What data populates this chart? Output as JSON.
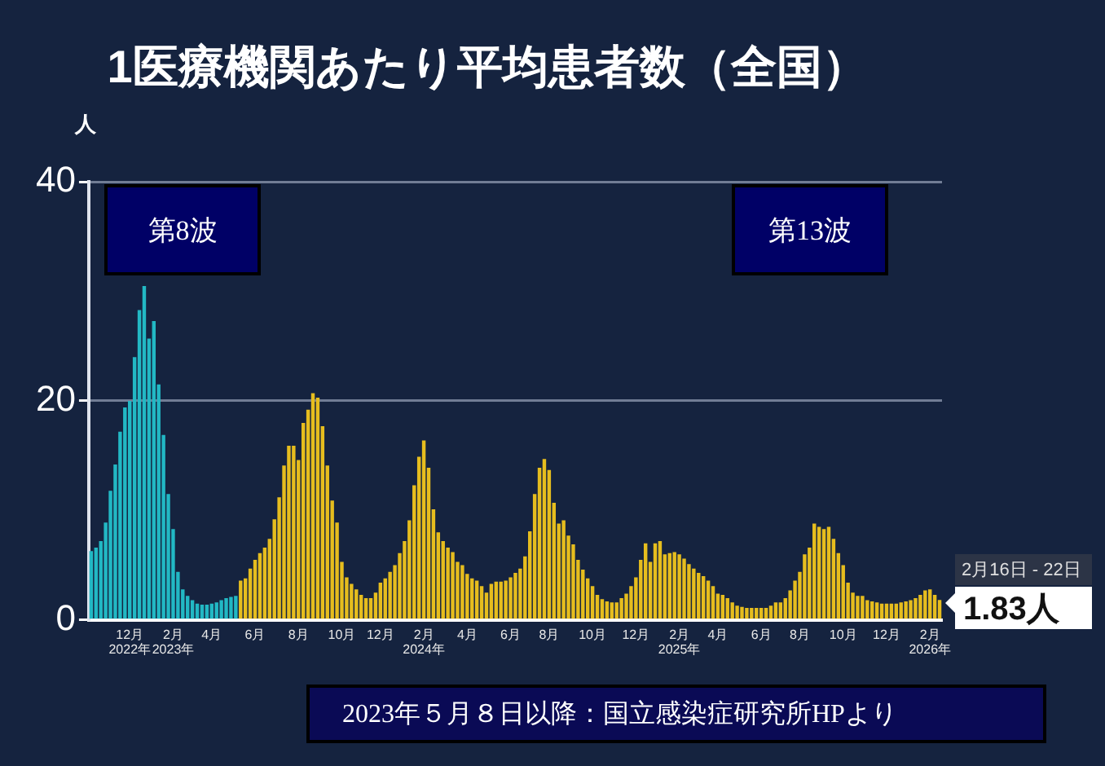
{
  "chart_data": {
    "type": "bar",
    "title": "1医療機関あたり平均患者数（全国）",
    "ylabel": "人",
    "categories": [
      null,
      null,
      null,
      null,
      null,
      null,
      null,
      null,
      "12月\n2022年",
      null,
      null,
      null,
      null,
      null,
      null,
      null,
      null,
      "2月\n2023年",
      null,
      null,
      null,
      null,
      null,
      null,
      null,
      "4月",
      null,
      null,
      null,
      null,
      null,
      null,
      null,
      null,
      "6月",
      null,
      null,
      null,
      null,
      null,
      null,
      null,
      null,
      "8月",
      null,
      null,
      null,
      null,
      null,
      null,
      null,
      null,
      "10月",
      null,
      null,
      null,
      null,
      null,
      null,
      null,
      "12月",
      null,
      null,
      null,
      null,
      null,
      null,
      null,
      null,
      "2月\n2024年",
      null,
      null,
      null,
      null,
      null,
      null,
      null,
      null,
      "4月",
      null,
      null,
      null,
      null,
      null,
      null,
      null,
      null,
      "6月",
      null,
      null,
      null,
      null,
      null,
      null,
      null,
      "8月",
      null,
      null,
      null,
      null,
      null,
      null,
      null,
      null,
      "10月",
      null,
      null,
      null,
      null,
      null,
      null,
      null,
      null,
      "12月",
      null,
      null,
      null,
      null,
      null,
      null,
      null,
      null,
      "2月\n2025年",
      null,
      null,
      null,
      null,
      null,
      null,
      null,
      "4月",
      null,
      null,
      null,
      null,
      null,
      null,
      null,
      null,
      "6月",
      null,
      null,
      null,
      null,
      null,
      null,
      null,
      "8月",
      null,
      null,
      null,
      null,
      null,
      null,
      null,
      null,
      "10月",
      null,
      null,
      null,
      null,
      null,
      null,
      null,
      null,
      "12月",
      null,
      null,
      null,
      null,
      null,
      null,
      null,
      null,
      "2月\n2026年",
      null,
      null
    ],
    "values": [
      6.3,
      6.6,
      7.2,
      8.9,
      11.8,
      14.2,
      17.2,
      19.4,
      20,
      24,
      28.3,
      30.5,
      25.7,
      27.3,
      21.5,
      16.9,
      11.5,
      8.3,
      4.4,
      2.8,
      2.2,
      1.8,
      1.5,
      1.4,
      1.4,
      1.5,
      1.6,
      1.8,
      2,
      2.1,
      2.2,
      3.6,
      3.8,
      4.7,
      5.5,
      6.1,
      6.6,
      7.4,
      9.2,
      11.2,
      14.1,
      15.9,
      15.9,
      14.6,
      18,
      19.2,
      20.7,
      20.3,
      17.7,
      14.1,
      10.9,
      8.9,
      5.3,
      3.9,
      3.3,
      2.8,
      2.3,
      2,
      2,
      2.5,
      3.4,
      3.8,
      4.4,
      5,
      6.1,
      7.2,
      9.1,
      12.3,
      14.9,
      16.4,
      13.9,
      10.1,
      8,
      7.2,
      6.6,
      6.2,
      5.3,
      5,
      4.2,
      3.8,
      3.6,
      3.1,
      2.5,
      3.3,
      3.5,
      3.5,
      3.6,
      3.9,
      4.3,
      4.7,
      5.8,
      8.1,
      11.5,
      13.9,
      14.7,
      13.7,
      10.7,
      8.8,
      9.1,
      7.7,
      6.9,
      5.5,
      4.6,
      3.8,
      3.1,
      2.3,
      1.9,
      1.7,
      1.6,
      1.6,
      2,
      2.4,
      3.1,
      3.9,
      5.5,
      7,
      5.3,
      7,
      7.2,
      6,
      6.1,
      6.2,
      6,
      5.6,
      5.1,
      4.7,
      4.3,
      4,
      3.6,
      3.1,
      2.4,
      2.3,
      2,
      1.6,
      1.3,
      1.2,
      1.1,
      1.1,
      1.1,
      1.1,
      1.1,
      1.3,
      1.6,
      1.6,
      2,
      2.7,
      3.6,
      4.4,
      6,
      6.6,
      8.8,
      8.5,
      8.3,
      8.5,
      7.4,
      6.1,
      5,
      3.4,
      2.5,
      2.2,
      2.2,
      1.8,
      1.7,
      1.6,
      1.5,
      1.5,
      1.5,
      1.5,
      1.6,
      1.7,
      1.8,
      2,
      2.3,
      2.7,
      2.8,
      2.3,
      1.83
    ],
    "colors": [
      "#22b8c4",
      "#22b8c4",
      "#22b8c4",
      "#22b8c4",
      "#22b8c4",
      "#22b8c4",
      "#22b8c4",
      "#22b8c4",
      "#22b8c4",
      "#22b8c4",
      "#22b8c4",
      "#22b8c4",
      "#22b8c4",
      "#22b8c4",
      "#22b8c4",
      "#22b8c4",
      "#22b8c4",
      "#22b8c4",
      "#22b8c4",
      "#22b8c4",
      "#22b8c4",
      "#22b8c4",
      "#22b8c4",
      "#22b8c4",
      "#22b8c4",
      "#22b8c4",
      "#22b8c4",
      "#22b8c4",
      "#22b8c4",
      "#22b8c4",
      "#22b8c4",
      "#e6bd1e",
      "#e6bd1e",
      "#e6bd1e",
      "#e6bd1e",
      "#e6bd1e",
      "#e6bd1e",
      "#e6bd1e",
      "#e6bd1e",
      "#e6bd1e",
      "#e6bd1e",
      "#e6bd1e",
      "#e6bd1e",
      "#e6bd1e",
      "#e6bd1e",
      "#e6bd1e",
      "#e6bd1e",
      "#e6bd1e",
      "#e6bd1e",
      "#e6bd1e",
      "#e6bd1e",
      "#e6bd1e",
      "#e6bd1e",
      "#e6bd1e",
      "#e6bd1e",
      "#e6bd1e",
      "#e6bd1e",
      "#e6bd1e",
      "#e6bd1e",
      "#e6bd1e",
      "#e6bd1e",
      "#e6bd1e",
      "#e6bd1e",
      "#e6bd1e",
      "#e6bd1e",
      "#e6bd1e",
      "#e6bd1e",
      "#e6bd1e",
      "#e6bd1e",
      "#e6bd1e",
      "#e6bd1e",
      "#e6bd1e",
      "#e6bd1e",
      "#e6bd1e",
      "#e6bd1e",
      "#e6bd1e",
      "#e6bd1e",
      "#e6bd1e",
      "#e6bd1e",
      "#e6bd1e",
      "#e6bd1e",
      "#e6bd1e",
      "#e6bd1e",
      "#e6bd1e",
      "#e6bd1e",
      "#e6bd1e",
      "#e6bd1e",
      "#e6bd1e",
      "#e6bd1e",
      "#e6bd1e",
      "#e6bd1e",
      "#e6bd1e",
      "#e6bd1e",
      "#e6bd1e",
      "#e6bd1e",
      "#e6bd1e",
      "#e6bd1e",
      "#e6bd1e",
      "#e6bd1e",
      "#e6bd1e",
      "#e6bd1e",
      "#e6bd1e",
      "#e6bd1e",
      "#e6bd1e",
      "#e6bd1e",
      "#e6bd1e",
      "#e6bd1e",
      "#e6bd1e",
      "#e6bd1e",
      "#e6bd1e",
      "#e6bd1e",
      "#e6bd1e",
      "#e6bd1e",
      "#e6bd1e",
      "#e6bd1e",
      "#e6bd1e",
      "#e6bd1e",
      "#e6bd1e",
      "#e6bd1e",
      "#e6bd1e",
      "#e6bd1e",
      "#e6bd1e",
      "#e6bd1e",
      "#e6bd1e",
      "#e6bd1e",
      "#e6bd1e",
      "#e6bd1e",
      "#e6bd1e",
      "#e6bd1e",
      "#e6bd1e",
      "#e6bd1e",
      "#e6bd1e",
      "#e6bd1e",
      "#e6bd1e",
      "#e6bd1e",
      "#e6bd1e",
      "#e6bd1e",
      "#e6bd1e",
      "#e6bd1e",
      "#e6bd1e",
      "#e6bd1e",
      "#e6bd1e",
      "#e6bd1e",
      "#e6bd1e",
      "#e6bd1e",
      "#e6bd1e",
      "#e6bd1e",
      "#e6bd1e",
      "#e6bd1e",
      "#e6bd1e",
      "#e6bd1e",
      "#e6bd1e",
      "#e6bd1e",
      "#e6bd1e",
      "#e6bd1e",
      "#e6bd1e",
      "#e6bd1e",
      "#e6bd1e",
      "#e6bd1e",
      "#e6bd1e",
      "#e6bd1e",
      "#e6bd1e",
      "#e6bd1e",
      "#e6bd1e",
      "#e6bd1e",
      "#e6bd1e",
      "#e6bd1e",
      "#e6bd1e",
      "#e6bd1e",
      "#e6bd1e",
      "#e6bd1e",
      "#e6bd1e",
      "#e6bd1e",
      "#e6bd1e",
      "#e6bd1e",
      "#e6bd1e",
      "#e6bd1e"
    ],
    "ylim": [
      0,
      40
    ],
    "yticks": [
      0,
      20,
      40
    ],
    "grid": "y",
    "annotations": [
      "第8波",
      "第13波",
      "2月16日 - 22日",
      "1.83人",
      "2023年５月８日以降：国立感染症研究所HPより"
    ]
  }
}
